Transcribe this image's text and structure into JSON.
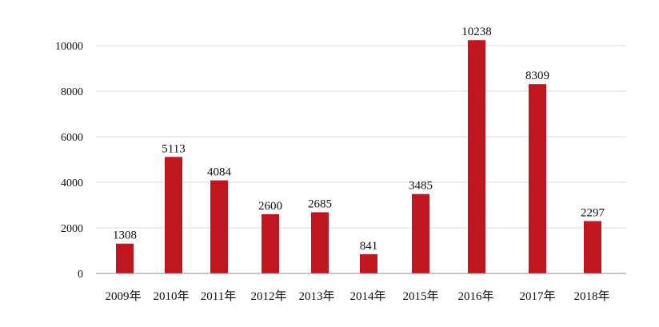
{
  "chart_data": {
    "type": "bar",
    "categories": [
      "2009年",
      "2010年",
      "2011年",
      "2012年",
      "2013年",
      "2014年",
      "2015年",
      "2016年",
      "2017年",
      "2018年"
    ],
    "values": [
      1308,
      5113,
      4084,
      2600,
      2685,
      841,
      3485,
      10238,
      8309,
      2297
    ],
    "data_labels": [
      "1308",
      "5113",
      "4084",
      "2600",
      "2685",
      "841",
      "3485",
      "10238",
      "8309",
      "2297"
    ],
    "yticks": [
      0,
      2000,
      4000,
      6000,
      8000,
      10000
    ],
    "ylim": [
      0,
      10500
    ],
    "title": "",
    "xlabel": "",
    "ylabel": "",
    "grid": true,
    "bar_color": "#c0161f",
    "grid_color": "#d9d9d9",
    "axis_color": "#8c8c8c"
  }
}
